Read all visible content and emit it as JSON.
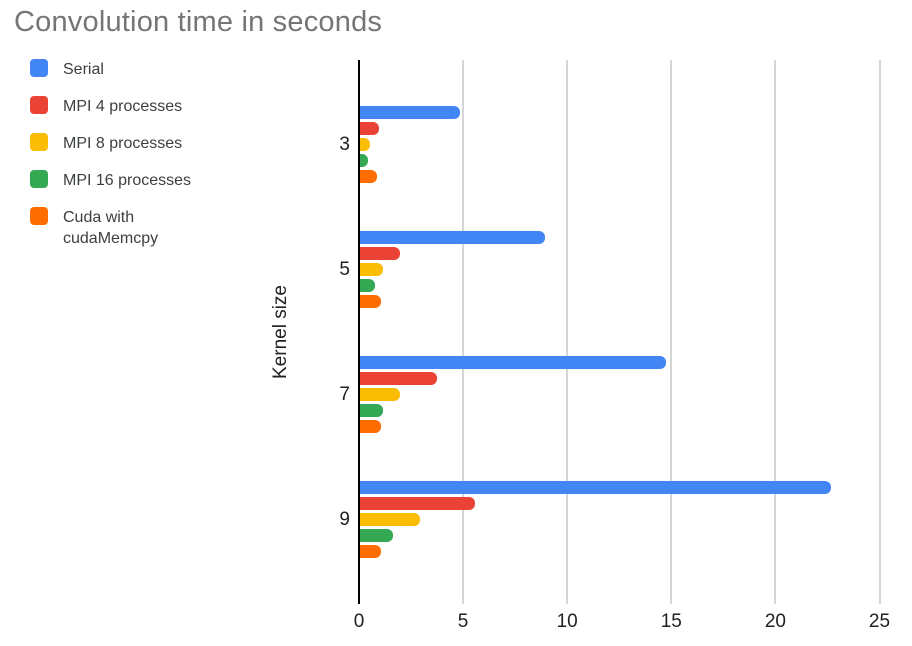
{
  "chart_data": {
    "type": "bar",
    "orientation": "horizontal",
    "title": "Convolution time in seconds",
    "xlabel": "",
    "ylabel": "Kernel size",
    "categories": [
      "3",
      "5",
      "7",
      "9"
    ],
    "series": [
      {
        "name": "Serial",
        "color": "#4285F4",
        "values": [
          4.8,
          8.9,
          14.7,
          22.6
        ]
      },
      {
        "name": "MPI 4 processes",
        "color": "#EA4335",
        "values": [
          0.9,
          1.9,
          3.7,
          5.5
        ]
      },
      {
        "name": "MPI 8 processes",
        "color": "#FBBC04",
        "values": [
          0.5,
          1.1,
          1.9,
          2.9
        ]
      },
      {
        "name": "MPI 16 processes",
        "color": "#34A853",
        "values": [
          0.4,
          0.7,
          1.1,
          1.6
        ]
      },
      {
        "name": "Cuda with cudaMemcpy",
        "color": "#FF6D01",
        "values": [
          0.8,
          1.0,
          1.0,
          1.0
        ]
      }
    ],
    "xlim": [
      0,
      25
    ],
    "x_ticks": [
      "0",
      "5",
      "10",
      "15",
      "20",
      "25"
    ],
    "grid": true,
    "legend_position": "top-left",
    "colors": {
      "title_text": "#757575",
      "axis_text": "#202124",
      "legend_text": "#3c4043",
      "gridline": "#d5d5d5",
      "axis_line": "#000000",
      "background": "#ffffff"
    }
  }
}
